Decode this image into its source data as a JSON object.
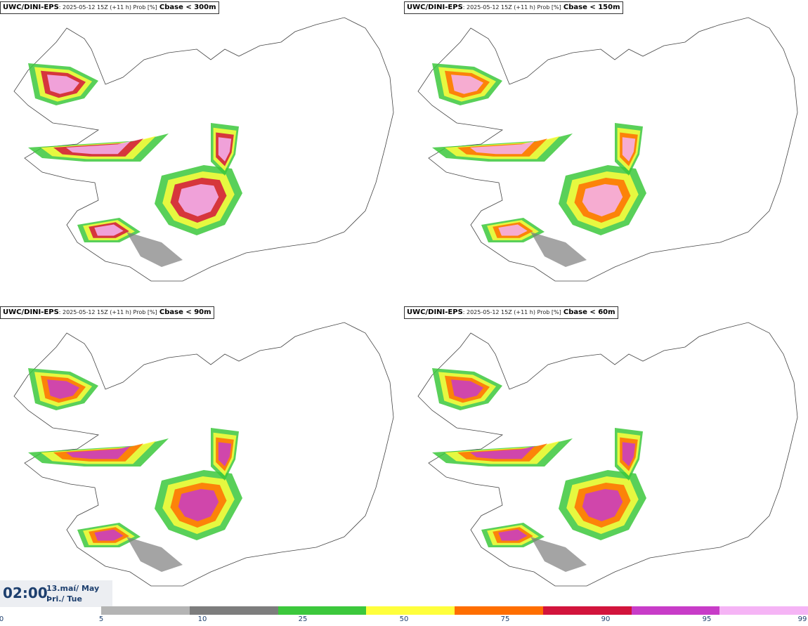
{
  "panels": [
    {
      "model": "UWC/DINI-EPS",
      "meta": ": 2025-05-12 15Z (+11 h) Prob [%]",
      "threshold": "Cbase < 300m"
    },
    {
      "model": "UWC/DINI-EPS",
      "meta": ": 2025-05-12 15Z (+11 h) Prob [%]",
      "threshold": "Cbase < 150m"
    },
    {
      "model": "UWC/DINI-EPS",
      "meta": ": 2025-05-12 15Z (+11 h) Prob [%]",
      "threshold": "Cbase < 90m"
    },
    {
      "model": "UWC/DINI-EPS",
      "meta": ": 2025-05-12 15Z (+11 h) Prob [%]",
      "threshold": "Cbase < 60m"
    }
  ],
  "clock": {
    "time": "02:00",
    "date_line1": "13.maí/ May",
    "date_line2": "Þri./ Tue"
  },
  "colorbar": {
    "ticks": [
      "0",
      "5",
      "10",
      "25",
      "50",
      "75",
      "90",
      "95",
      "99"
    ],
    "colors": [
      "#b4b4b4",
      "#7d7d7d",
      "#3cc83c",
      "#ffff3c",
      "#ff6e00",
      "#d2143c",
      "#c83cc8",
      "#f5b4f5"
    ]
  }
}
